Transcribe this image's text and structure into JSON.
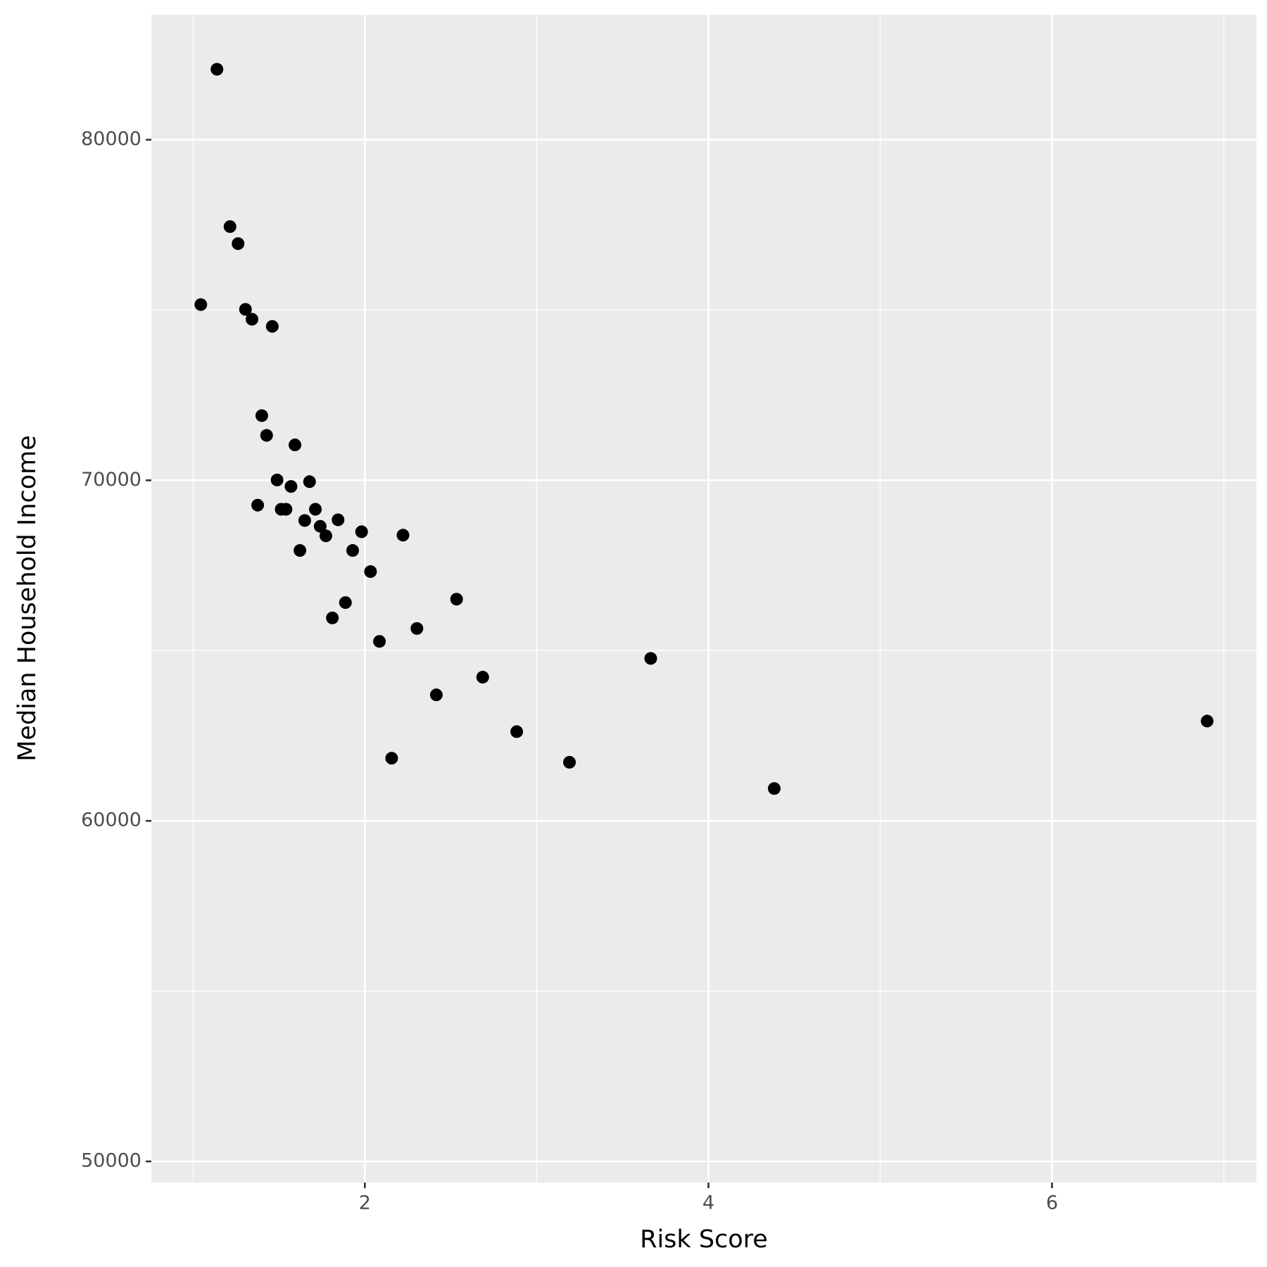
{
  "chart_data": {
    "type": "scatter",
    "x_label": "Risk Score",
    "y_label": "Median Household Income",
    "color": "#000000",
    "grid": true,
    "xlim": [
      0.757,
      7.19
    ],
    "ylim": [
      49380,
      83670
    ],
    "xticks": [
      2,
      4,
      6
    ],
    "yticks": [
      50000,
      60000,
      70000,
      80000
    ],
    "series": [
      {
        "x": [
          1.139,
          1.215,
          1.262,
          1.045,
          1.305,
          1.343,
          1.461,
          1.4,
          1.428,
          1.593,
          1.489,
          1.678,
          1.57,
          1.376,
          1.513,
          1.541,
          1.712,
          1.65,
          1.844,
          1.74,
          1.773,
          1.981,
          2.222,
          1.622,
          1.929,
          2.033,
          2.534,
          1.887,
          1.811,
          2.303,
          2.085,
          3.664,
          2.686,
          2.416,
          2.884,
          6.903,
          2.156,
          3.191,
          4.383
        ],
        "values": [
          82070,
          77450,
          76950,
          75160,
          75020,
          74730,
          74520,
          71900,
          71320,
          71040,
          70010,
          69960,
          69820,
          69270,
          69150,
          69150,
          69150,
          68820,
          68840,
          68650,
          68370,
          68490,
          68390,
          67940,
          67940,
          67320,
          66510,
          66410,
          65960,
          65650,
          65270,
          64770,
          64220,
          63700,
          62620,
          62930,
          61840,
          61720,
          60950
        ]
      }
    ]
  }
}
